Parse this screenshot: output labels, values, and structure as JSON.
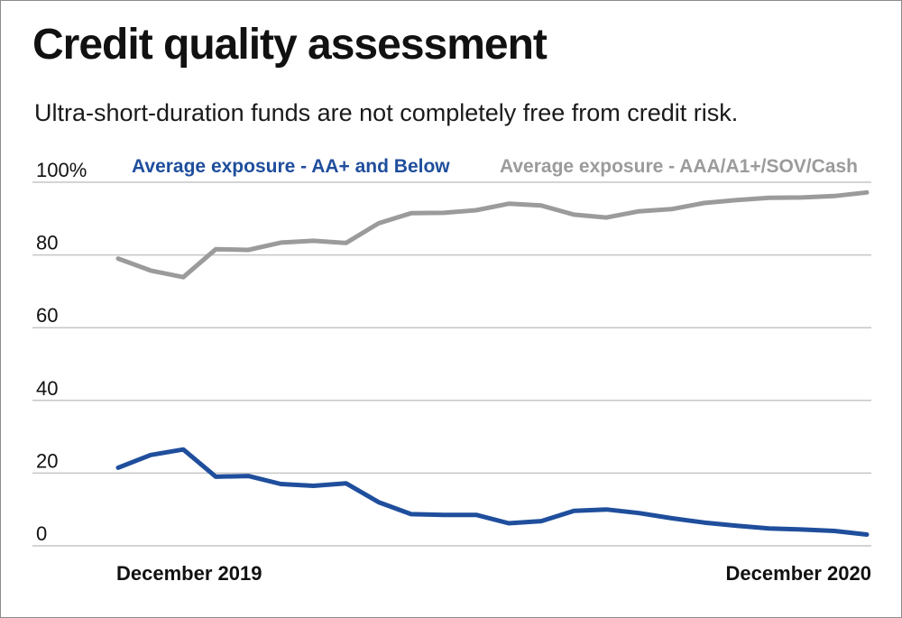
{
  "chart_data": {
    "type": "line",
    "title": "Credit quality assessment",
    "subtitle": "Ultra-short-duration funds are not completely free from credit risk.",
    "xlabel": "",
    "ylabel": "",
    "ylim": [
      0,
      100
    ],
    "y_ticks": [
      {
        "value": 100,
        "label": "100%"
      },
      {
        "value": 80,
        "label": "80"
      },
      {
        "value": 60,
        "label": "60"
      },
      {
        "value": 40,
        "label": "40"
      },
      {
        "value": 20,
        "label": "20"
      },
      {
        "value": 0,
        "label": "0"
      }
    ],
    "x_tick_labels": [
      {
        "index": 0,
        "label": "December 2019"
      },
      {
        "index": 23,
        "label": "December 2020"
      }
    ],
    "grid": true,
    "legend_placement": "top",
    "series": [
      {
        "name": "Average exposure - AA+ and Below",
        "color": "#1f4e9c",
        "values": [
          21.5,
          25,
          26.5,
          19,
          19.2,
          17,
          16.5,
          17.2,
          12,
          8.7,
          8.5,
          8.5,
          6.2,
          6.8,
          9.6,
          10,
          9,
          7.6,
          6.4,
          5.5,
          4.8,
          4.5,
          4.1,
          3.1
        ]
      },
      {
        "name": "Average exposure - AAA/A1+/SOV/Cash",
        "color": "#9b9b9b",
        "values": [
          79,
          75.7,
          73.9,
          81.6,
          81.4,
          83.4,
          83.9,
          83.3,
          88.7,
          91.5,
          91.6,
          92.3,
          94.1,
          93.6,
          91.1,
          90.3,
          92,
          92.6,
          94.3,
          95.1,
          95.7,
          95.8,
          96.2,
          97.2
        ]
      }
    ]
  }
}
